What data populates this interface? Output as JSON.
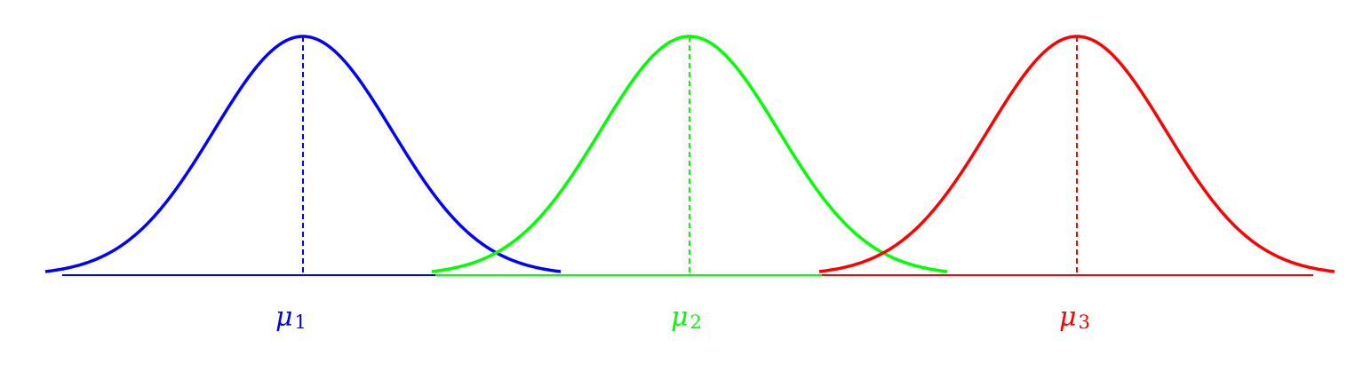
{
  "diagram": {
    "type": "gaussian-components",
    "curves": [
      {
        "mean_symbol": "μ",
        "mean_index": "1",
        "color": "#0000ff"
      },
      {
        "mean_symbol": "μ",
        "mean_index": "2",
        "color": "#00ff00"
      },
      {
        "mean_symbol": "μ",
        "mean_index": "3",
        "color": "#ff0000"
      }
    ]
  }
}
